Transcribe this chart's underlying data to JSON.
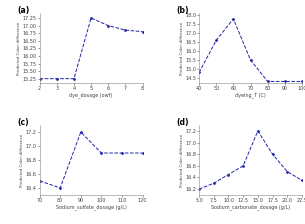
{
  "subplot_a": {
    "label": "(a)",
    "x": [
      2,
      3,
      4,
      5,
      6,
      7,
      8
    ],
    "y": [
      15.25,
      15.25,
      15.25,
      17.25,
      17.0,
      16.85,
      16.8
    ],
    "xlabel": "dye_dosage (owf)",
    "ylabel": "Predicted Color difference",
    "xlim": [
      2,
      8
    ],
    "ylim": [
      15.1,
      17.4
    ],
    "yticks": [
      15.25,
      15.5,
      15.75,
      16.0,
      16.25,
      16.5,
      16.75,
      17.0,
      17.25
    ]
  },
  "subplot_b": {
    "label": "(b)",
    "x": [
      40,
      50,
      60,
      70,
      80,
      90,
      100
    ],
    "y": [
      14.8,
      16.6,
      17.8,
      15.5,
      14.3,
      14.3,
      14.3
    ],
    "xlabel": "dyeing_T (C)",
    "ylabel": "Predicted Color difference",
    "xlim": [
      40,
      100
    ],
    "ylim": [
      14.2,
      18.1
    ],
    "yticks": [
      14.5,
      15.0,
      15.5,
      16.0,
      16.5,
      17.0,
      17.5,
      18.0
    ]
  },
  "subplot_c": {
    "label": "(c)",
    "x": [
      70,
      80,
      90,
      100,
      110,
      120
    ],
    "y": [
      16.5,
      16.4,
      17.2,
      16.9,
      16.9,
      16.9
    ],
    "xlabel": "Sodium_sulfate_dosage (g/L)",
    "ylabel": "Predicted Color difference",
    "xlim": [
      70,
      120
    ],
    "ylim": [
      16.3,
      17.3
    ],
    "yticks": [
      16.4,
      16.6,
      16.8,
      17.0,
      17.2
    ]
  },
  "subplot_d": {
    "label": "(d)",
    "x": [
      5.0,
      7.5,
      10.0,
      12.5,
      15.0,
      17.5,
      20.0,
      22.5
    ],
    "y": [
      16.2,
      16.3,
      16.45,
      16.6,
      17.2,
      16.8,
      16.5,
      16.35
    ],
    "xlabel": "Sodium_carbonate_dosage (g/L)",
    "ylabel": "Predicted Color difference",
    "xlim": [
      5.0,
      22.5
    ],
    "ylim": [
      16.1,
      17.3
    ],
    "yticks": [
      16.2,
      16.4,
      16.6,
      16.8,
      17.0,
      17.2
    ]
  },
  "line_color": "#2222aa",
  "marker": "D",
  "markersize": 1.5,
  "linewidth": 0.7,
  "linestyle": "--",
  "bg_color": "#ffffff",
  "label_fontsize": 5.5,
  "tick_fontsize": 3.5,
  "xlabel_fontsize": 3.5,
  "ylabel_fontsize": 3.0
}
